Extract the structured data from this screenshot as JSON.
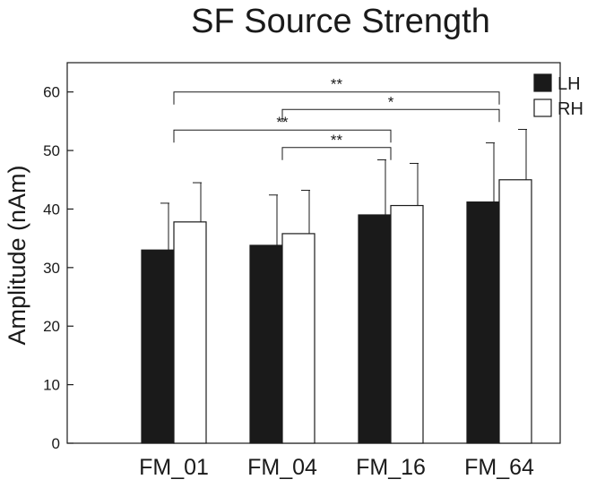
{
  "chart_data": {
    "type": "bar",
    "title": "SF Source Strength",
    "xlabel": "",
    "ylabel": "Amplitude (nAm)",
    "ylim": [
      0,
      65
    ],
    "yticks": [
      0,
      10,
      20,
      30,
      40,
      50,
      60
    ],
    "grid": false,
    "legend_position": "top-right",
    "categories": [
      "FM_01",
      "FM_04",
      "FM_16",
      "FM_64"
    ],
    "series": [
      {
        "name": "LH",
        "color": "#1a1a1a",
        "values": [
          33.0,
          33.8,
          39.0,
          41.2
        ],
        "errors": [
          8.0,
          8.6,
          9.4,
          10.1
        ]
      },
      {
        "name": "RH",
        "color": "#ffffff",
        "values": [
          37.8,
          35.8,
          40.6,
          45.0
        ],
        "errors": [
          6.7,
          7.4,
          7.2,
          8.6
        ]
      }
    ],
    "significance": [
      {
        "from": "FM_01",
        "to": "FM_64",
        "y": 60.0,
        "label": "**"
      },
      {
        "from": "FM_04",
        "to": "FM_64",
        "y": 57.0,
        "label": "*"
      },
      {
        "from": "FM_01",
        "to": "FM_16",
        "y": 53.5,
        "label": "**"
      },
      {
        "from": "FM_04",
        "to": "FM_16",
        "y": 50.5,
        "label": "**"
      }
    ]
  }
}
